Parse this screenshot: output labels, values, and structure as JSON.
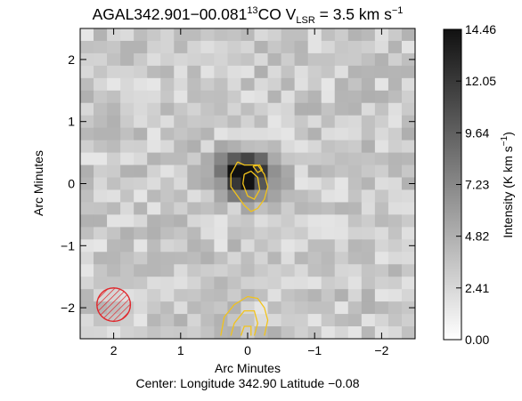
{
  "chart_data": {
    "type": "heatmap",
    "title": {
      "prefix": "AGAL342.901−00.081",
      "isotope_mass": "13",
      "molecule": "CO V",
      "sub": "LSR",
      "suffix": " = 3.5 km s",
      "sup": "−1"
    },
    "xlabel": "Arc Minutes",
    "ylabel": "Arc Minutes",
    "xlim": [
      2.5,
      -2.5
    ],
    "ylim": [
      -2.5,
      2.5
    ],
    "x_ticks": [
      {
        "value": 2,
        "label": "2"
      },
      {
        "value": 1,
        "label": "1"
      },
      {
        "value": 0,
        "label": "0"
      },
      {
        "value": -1,
        "label": "−1"
      },
      {
        "value": -2,
        "label": "−2"
      }
    ],
    "y_ticks": [
      {
        "value": 2,
        "label": "2"
      },
      {
        "value": 1,
        "label": "1"
      },
      {
        "value": 0,
        "label": "0"
      },
      {
        "value": -1,
        "label": "−1"
      },
      {
        "value": -2,
        "label": "−2"
      }
    ],
    "footer": "Center:  Longitude 342.90 Latitude −0.08",
    "colorbar": {
      "label_main": "Intensity (K km s",
      "label_sup": "−1",
      "label_end": ")",
      "min": 0.0,
      "max": 14.46,
      "ticks": [
        {
          "value": 14.46,
          "label": "14.46"
        },
        {
          "value": 12.05,
          "label": "12.05"
        },
        {
          "value": 9.64,
          "label": "9.64"
        },
        {
          "value": 7.23,
          "label": "7.23"
        },
        {
          "value": 4.82,
          "label": "4.82"
        },
        {
          "value": 2.41,
          "label": "2.41"
        },
        {
          "value": 0.0,
          "label": "0.00"
        }
      ]
    },
    "grid": false,
    "beam": {
      "x": 2.0,
      "y": -1.95,
      "radius_arcmin": 0.25,
      "color": "#e0262b"
    },
    "contour_color": "#f2c31b",
    "core_emission": {
      "center_x": 0.0,
      "center_y": 0.15,
      "peak": 13.5
    },
    "contours_inner": [
      [
        [
          0.15,
          0.35
        ],
        [
          0.05,
          0.3
        ],
        [
          -0.15,
          0.3
        ],
        [
          -0.25,
          0.15
        ],
        [
          -0.3,
          -0.05
        ],
        [
          -0.25,
          -0.25
        ],
        [
          -0.15,
          -0.4
        ],
        [
          -0.05,
          -0.45
        ],
        [
          0.05,
          -0.35
        ],
        [
          0.15,
          -0.2
        ],
        [
          0.25,
          -0.05
        ],
        [
          0.25,
          0.15
        ],
        [
          0.15,
          0.35
        ]
      ],
      [
        [
          0.05,
          0.15
        ],
        [
          -0.05,
          0.2
        ],
        [
          -0.15,
          0.1
        ],
        [
          -0.18,
          -0.1
        ],
        [
          -0.1,
          -0.25
        ],
        [
          0.0,
          -0.2
        ],
        [
          0.07,
          0.0
        ],
        [
          0.05,
          0.15
        ]
      ],
      [
        [
          -0.08,
          0.28
        ],
        [
          -0.18,
          0.3
        ],
        [
          -0.22,
          0.22
        ],
        [
          -0.15,
          0.18
        ],
        [
          -0.08,
          0.28
        ]
      ]
    ],
    "contours_edge": [
      [
        [
          0.4,
          -2.45
        ],
        [
          0.35,
          -2.15
        ],
        [
          0.2,
          -1.95
        ],
        [
          0.0,
          -1.82
        ],
        [
          -0.15,
          -1.85
        ],
        [
          -0.25,
          -2.0
        ],
        [
          -0.3,
          -2.2
        ],
        [
          -0.25,
          -2.45
        ]
      ],
      [
        [
          0.25,
          -2.45
        ],
        [
          0.2,
          -2.25
        ],
        [
          0.05,
          -2.05
        ],
        [
          -0.1,
          -2.05
        ],
        [
          -0.15,
          -2.25
        ],
        [
          -0.1,
          -2.45
        ]
      ],
      [
        [
          0.1,
          -2.45
        ],
        [
          0.05,
          -2.3
        ],
        [
          -0.05,
          -2.3
        ],
        [
          -0.05,
          -2.45
        ]
      ]
    ]
  }
}
